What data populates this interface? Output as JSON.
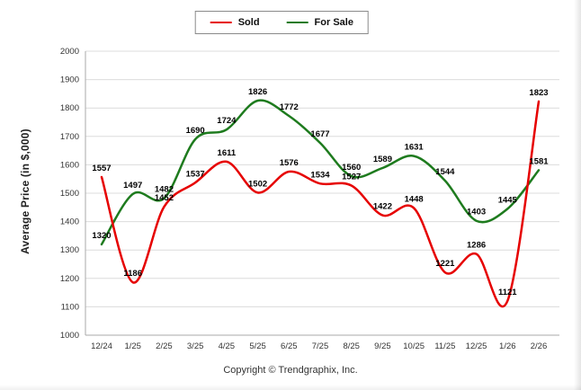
{
  "ylabel": "Average Price (in $,000)",
  "footer": "Copyright © Trendgraphix, Inc.",
  "colors": {
    "sold": "#e60000",
    "for_sale": "#1e7b1e",
    "grid": "#dcdcdc",
    "axis": "#aaaaaa",
    "tick_text": "#333333",
    "data_label": "#000000"
  },
  "chart_data": {
    "type": "line",
    "title": "",
    "xlabel": "",
    "ylabel": "Average Price (in $,000)",
    "categories": [
      "12/24",
      "1/25",
      "2/25",
      "3/25",
      "4/25",
      "5/25",
      "6/25",
      "7/25",
      "8/25",
      "9/25",
      "10/25",
      "11/25",
      "12/25",
      "1/26",
      "2/26"
    ],
    "series": [
      {
        "name": "Sold",
        "color": "#e60000",
        "values": [
          1557,
          1186,
          1452,
          1537,
          1611,
          1502,
          1576,
          1534,
          1527,
          1422,
          1448,
          1221,
          1286,
          1121,
          1823
        ]
      },
      {
        "name": "For Sale",
        "color": "#1e7b1e",
        "values": [
          1320,
          1497,
          1482,
          1690,
          1724,
          1826,
          1772,
          1677,
          1560,
          1589,
          1631,
          1544,
          1403,
          1445,
          1581
        ]
      }
    ],
    "ylim": [
      1000,
      2000
    ],
    "ytick_step": 100,
    "grid": true,
    "legend_position": "top-center"
  }
}
